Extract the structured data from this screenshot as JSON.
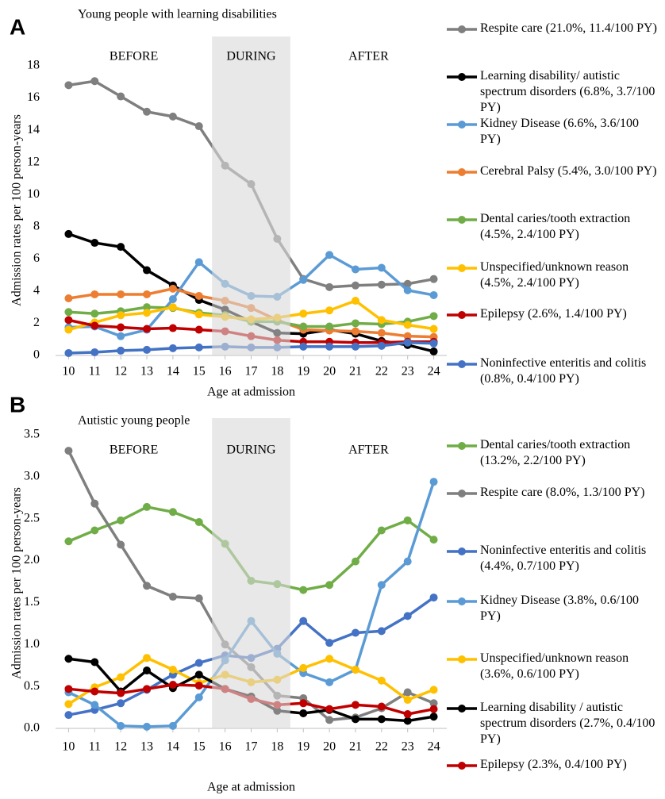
{
  "chart_data": [
    {
      "type": "line",
      "panel": "A",
      "title": "Young people with learning disabilities",
      "x_label": "Age at admission",
      "y_label": "Admission rates per 100 person-years",
      "x": [
        10,
        11,
        12,
        13,
        14,
        15,
        16,
        17,
        18,
        19,
        20,
        21,
        22,
        23,
        24
      ],
      "xlim": [
        9.5,
        24.5
      ],
      "xticks": [
        10,
        11,
        12,
        13,
        14,
        15,
        16,
        17,
        18,
        19,
        20,
        21,
        22,
        23,
        24
      ],
      "ylim": [
        0,
        18
      ],
      "yticks": [
        0,
        2,
        4,
        6,
        8,
        10,
        12,
        14,
        16,
        18
      ],
      "grid": false,
      "shaded_band": [
        15.5,
        18.5
      ],
      "annotations": [
        "BEFORE",
        "DURING",
        "AFTER"
      ],
      "series": [
        {
          "name": "Respite care (21.0%, 11.4/100 PY)",
          "color": "#7f7f7f",
          "values": [
            16.8,
            17.05,
            16.1,
            15.15,
            14.85,
            14.25,
            11.8,
            10.65,
            7.25,
            4.75,
            4.25,
            4.35,
            4.4,
            4.45,
            4.75
          ]
        },
        {
          "name": "Learning disability/ autistic spectrum disorders (6.8%, 3.7/100 PY)",
          "color": "#000000",
          "values": [
            7.55,
            7.0,
            6.75,
            5.3,
            4.35,
            3.45,
            2.85,
            2.1,
            1.4,
            1.35,
            1.6,
            1.35,
            0.9,
            0.65,
            0.25
          ]
        },
        {
          "name": "Kidney Disease (6.6%, 3.6/100 PY)",
          "color": "#5b9bd5",
          "values": [
            1.75,
            1.8,
            1.2,
            1.6,
            3.5,
            5.8,
            4.45,
            3.7,
            3.65,
            4.7,
            6.25,
            5.35,
            5.45,
            4.05,
            3.75
          ]
        },
        {
          "name": "Cerebral Palsy (5.4%, 3.0/100 PY)",
          "color": "#ed7d31",
          "values": [
            3.55,
            3.8,
            3.8,
            3.8,
            4.15,
            3.7,
            3.4,
            2.95,
            2.2,
            1.6,
            1.55,
            1.5,
            1.4,
            1.2,
            1.15
          ]
        },
        {
          "name": "Dental caries/tooth extraction (4.5%, 2.4/100 PY)",
          "color": "#70ad47",
          "values": [
            2.7,
            2.6,
            2.75,
            3.0,
            2.95,
            2.65,
            2.5,
            2.1,
            2.1,
            1.8,
            1.8,
            2.0,
            1.95,
            2.1,
            2.45
          ]
        },
        {
          "name": "Unspecified/unknown reason (4.5%, 2.4/100 PY)",
          "color": "#ffc000",
          "values": [
            1.6,
            2.05,
            2.5,
            2.65,
            3.0,
            2.55,
            2.4,
            2.25,
            2.35,
            2.6,
            2.8,
            3.4,
            2.2,
            1.9,
            1.65
          ]
        },
        {
          "name": "Epilepsy (2.6%, 1.4/100 PY)",
          "color": "#c00000",
          "values": [
            2.2,
            1.85,
            1.75,
            1.65,
            1.7,
            1.6,
            1.5,
            1.2,
            0.95,
            0.85,
            0.85,
            0.8,
            0.8,
            0.85,
            0.85
          ]
        },
        {
          "name": "Noninfective enteritis and colitis (0.8%, 0.4/100 PY)",
          "color": "#4472c4",
          "values": [
            0.15,
            0.2,
            0.3,
            0.35,
            0.45,
            0.5,
            0.55,
            0.5,
            0.5,
            0.55,
            0.55,
            0.55,
            0.6,
            0.8,
            0.75
          ]
        }
      ]
    },
    {
      "type": "line",
      "panel": "B",
      "title": "Autistic young people",
      "x_label": "Age at admission",
      "y_label": "Admission rates per 100 person-years",
      "x": [
        10,
        11,
        12,
        13,
        14,
        15,
        16,
        17,
        18,
        19,
        20,
        21,
        22,
        23,
        24
      ],
      "xlim": [
        9.5,
        24.5
      ],
      "xticks": [
        10,
        11,
        12,
        13,
        14,
        15,
        16,
        17,
        18,
        19,
        20,
        21,
        22,
        23,
        24
      ],
      "ylim": [
        0,
        3.5
      ],
      "yticks": [
        {
          "value": 0,
          "label": "0.0"
        },
        0.5,
        {
          "value": 1,
          "label": "1.0"
        },
        1.5,
        {
          "value": 2,
          "label": "2.0"
        },
        2.5,
        {
          "value": 3,
          "label": "3.0"
        },
        3.5
      ],
      "grid": false,
      "shaded_band": [
        15.5,
        18.5
      ],
      "annotations": [
        "BEFORE",
        "DURING",
        "AFTER"
      ],
      "series": [
        {
          "name": "Dental caries/tooth extraction (13.2%, 2.2/100 PY)",
          "color": "#70ad47",
          "values": [
            2.23,
            2.36,
            2.48,
            2.64,
            2.58,
            2.46,
            2.2,
            1.76,
            1.72,
            1.65,
            1.71,
            1.99,
            2.36,
            2.48,
            2.25
          ]
        },
        {
          "name": "Respite care (8.0%, 1.3/100 PY)",
          "color": "#7f7f7f",
          "values": [
            3.31,
            2.68,
            2.19,
            1.7,
            1.57,
            1.55,
            1.0,
            0.73,
            0.39,
            0.36,
            0.1,
            0.13,
            0.24,
            0.43,
            0.3
          ]
        },
        {
          "name": "Noninfective enteritis and colitis (4.4%, 0.7/100 PY)",
          "color": "#4472c4",
          "values": [
            0.16,
            0.22,
            0.3,
            0.46,
            0.64,
            0.78,
            0.87,
            0.84,
            0.95,
            1.28,
            1.02,
            1.14,
            1.16,
            1.34,
            1.56
          ]
        },
        {
          "name": "Kidney Disease (3.8%, 0.6/100 PY)",
          "color": "#5b9bd5",
          "values": [
            0.43,
            0.28,
            0.03,
            0.02,
            0.03,
            0.37,
            0.81,
            1.28,
            0.89,
            0.66,
            0.55,
            0.7,
            1.71,
            1.99,
            2.94
          ]
        },
        {
          "name": "Unspecified/unknown reason (3.6%, 0.6/100 PY)",
          "color": "#ffc000",
          "values": [
            0.29,
            0.49,
            0.61,
            0.84,
            0.7,
            0.54,
            0.64,
            0.55,
            0.58,
            0.72,
            0.83,
            0.7,
            0.57,
            0.34,
            0.46
          ]
        },
        {
          "name": "Learning disability / autistic spectrum disorders (2.7%, 0.4/100 PY)",
          "color": "#000000",
          "values": [
            0.83,
            0.79,
            0.44,
            0.69,
            0.48,
            0.64,
            0.47,
            0.38,
            0.21,
            0.18,
            0.22,
            0.11,
            0.11,
            0.09,
            0.14
          ]
        },
        {
          "name": "Epilepsy (2.3%, 0.4/100 PY)",
          "color": "#c00000",
          "values": [
            0.47,
            0.44,
            0.42,
            0.47,
            0.52,
            0.51,
            0.47,
            0.35,
            0.28,
            0.3,
            0.23,
            0.28,
            0.26,
            0.17,
            0.23
          ]
        }
      ]
    }
  ]
}
